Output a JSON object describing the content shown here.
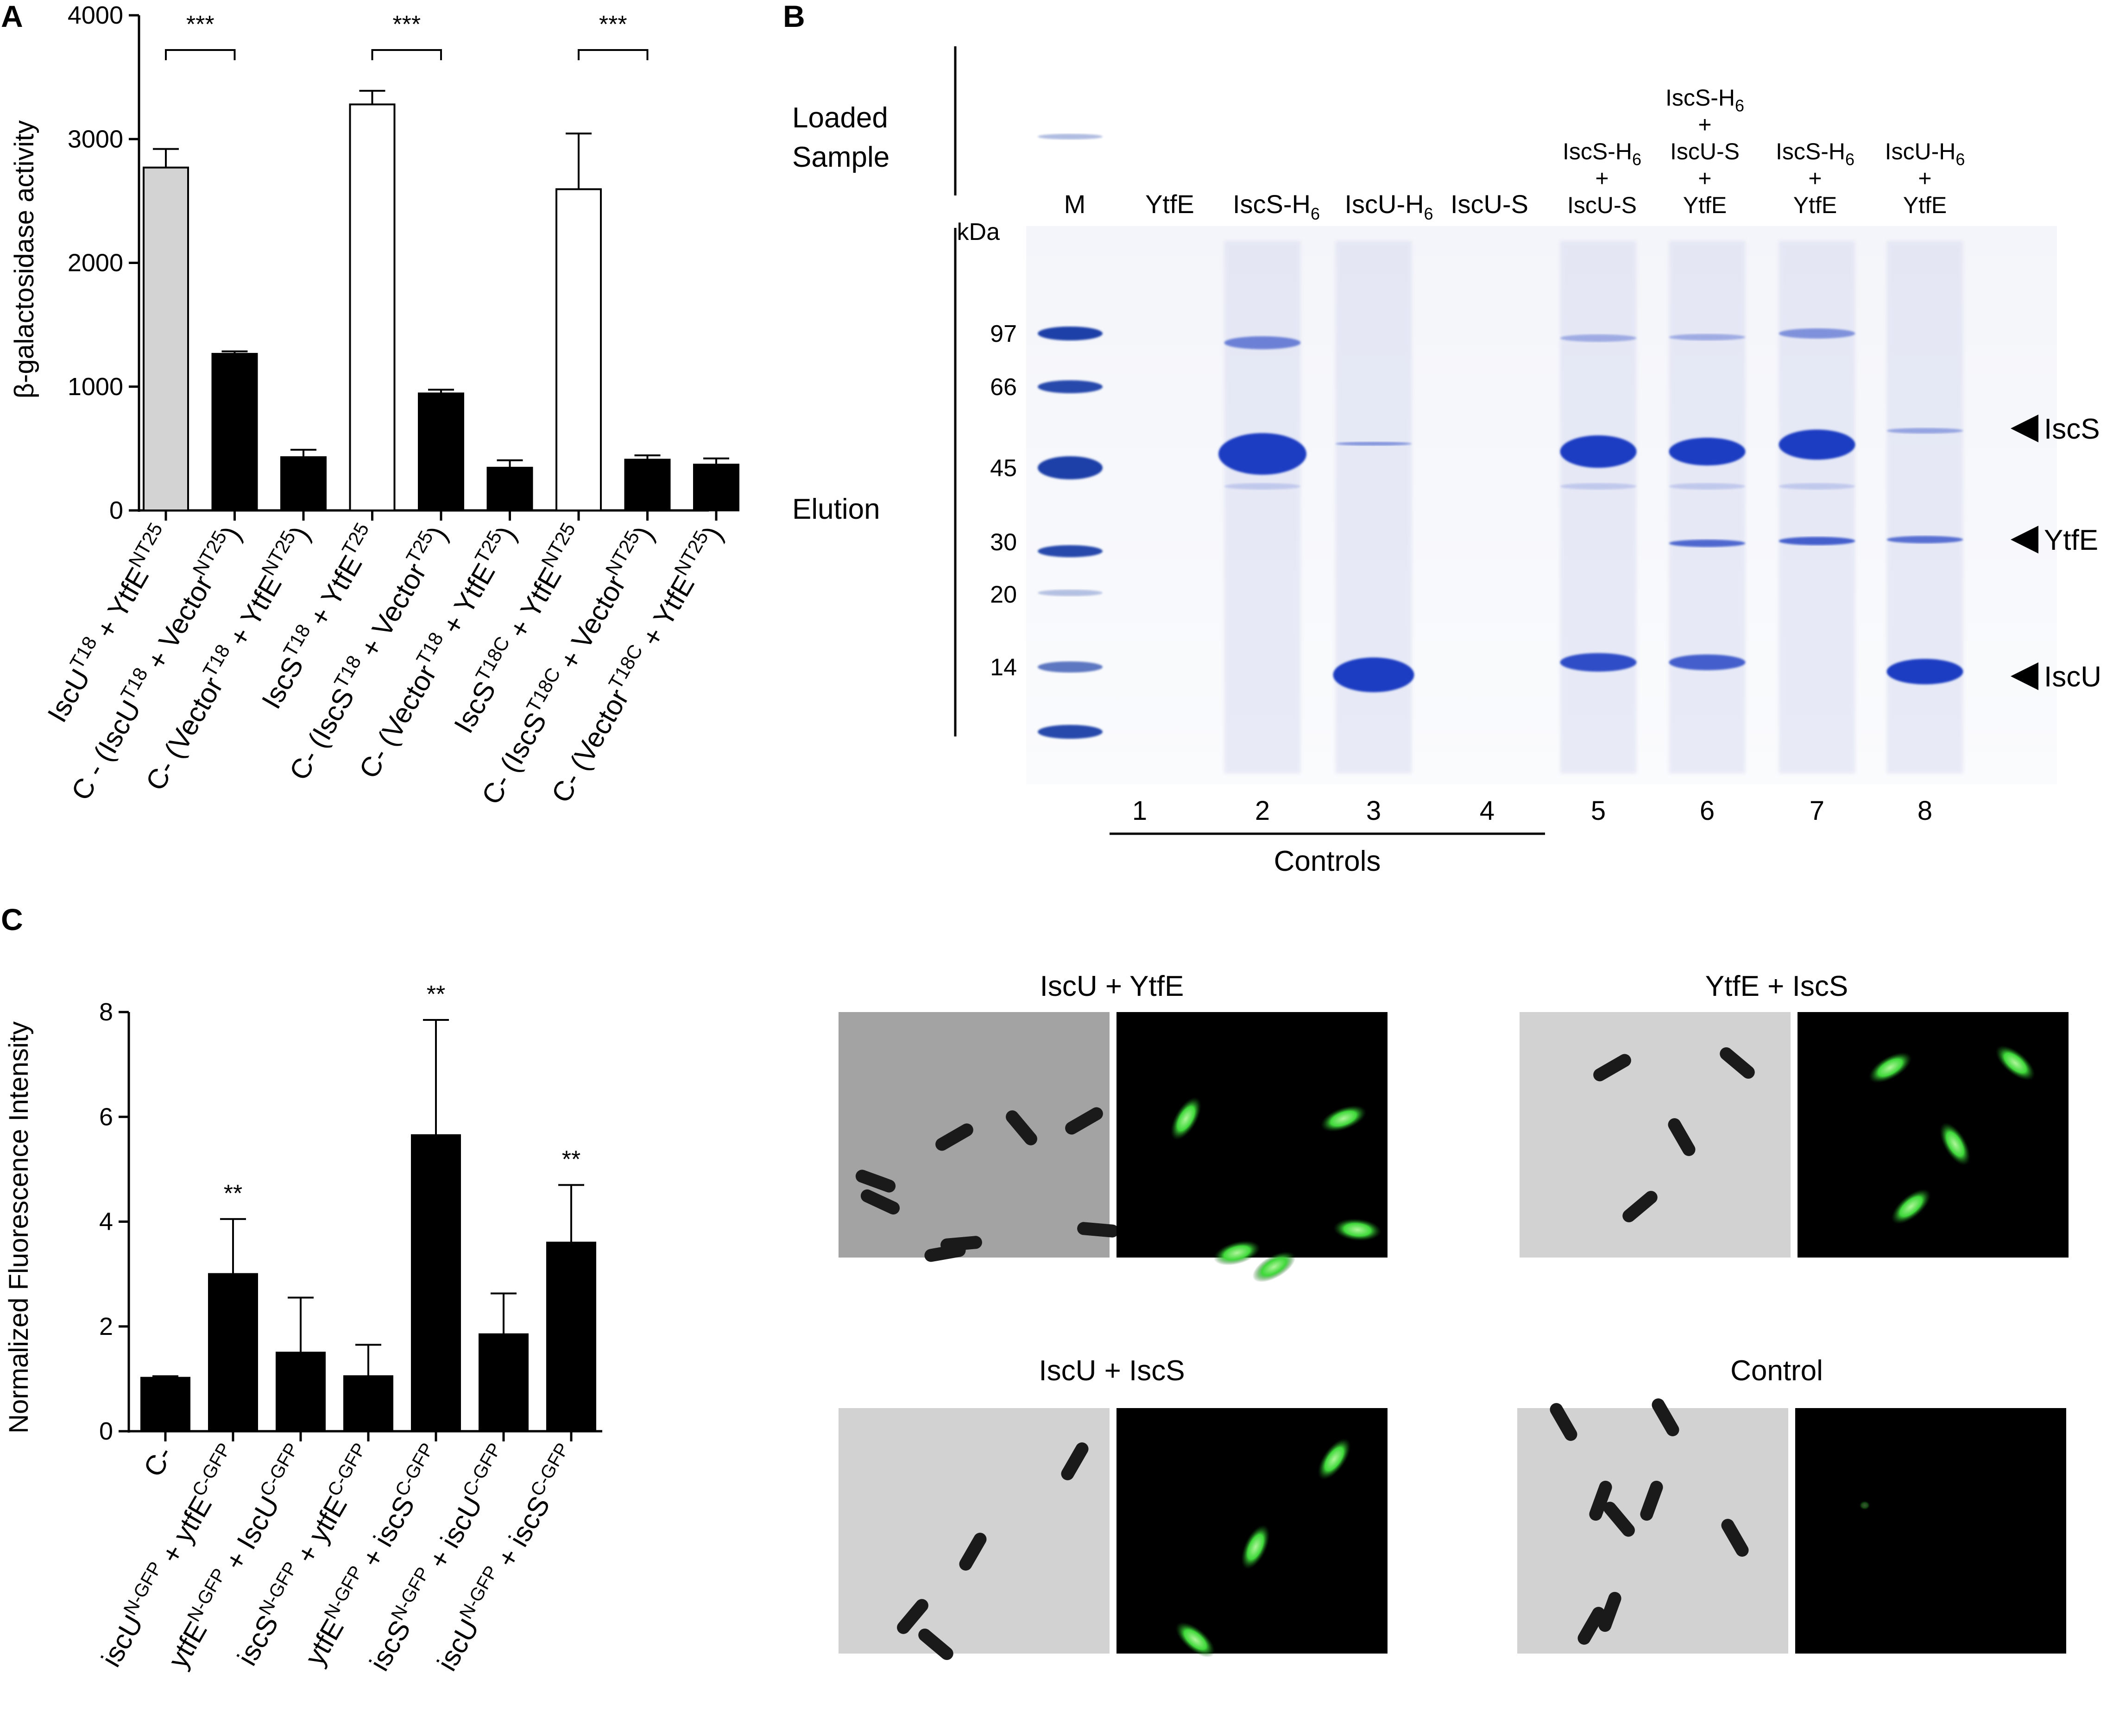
{
  "panels": {
    "A": {
      "letter": "A",
      "chart_data": {
        "type": "bar",
        "ylabel": "β-galactosidase activity",
        "ylim": [
          0,
          4000
        ],
        "yticks": [
          0,
          1000,
          2000,
          3000,
          4000
        ],
        "categories": [
          "IscU^T18 + YtfE^NT25",
          "C - (IscU^T18 + Vector^NT25)",
          "C- (Vector^T18 + YtfE^NT25)",
          "IscS^T18 + YtfE^T25",
          "C- (IscS^T18 + Vector^T25)",
          "C- (Vector^T18 + YtfE^T25)",
          "IscS^T18C + YtfE^NT25",
          "C- (IscS^T18C + Vector^NT25)",
          "C- (Vector^T18C + YtfE^NT25)"
        ],
        "values": [
          2770,
          1265,
          430,
          3280,
          945,
          345,
          2595,
          410,
          370
        ],
        "errors": [
          150,
          20,
          60,
          110,
          30,
          60,
          450,
          35,
          50
        ],
        "fill": [
          "#d3d3d3",
          "#000000",
          "#000000",
          "#ffffff",
          "#000000",
          "#000000",
          "#ffffff",
          "#000000",
          "#000000"
        ],
        "significance": [
          {
            "from": 0,
            "to": 1,
            "label": "***"
          },
          {
            "from": 3,
            "to": 4,
            "label": "***"
          },
          {
            "from": 6,
            "to": 7,
            "label": "***"
          }
        ]
      },
      "x_labels": [
        {
          "parts": [
            [
              "IscU",
              ""
            ],
            [
              "T18",
              "sup"
            ],
            [
              " + YtfE",
              ""
            ],
            [
              "NT25",
              "sup"
            ]
          ]
        },
        {
          "parts": [
            [
              "C - (IscU",
              ""
            ],
            [
              "T18",
              "sup"
            ],
            [
              " + Vector",
              ""
            ],
            [
              "NT25",
              "sup"
            ],
            [
              ")",
              ""
            ]
          ]
        },
        {
          "parts": [
            [
              "C- (Vector",
              ""
            ],
            [
              "T18",
              "sup"
            ],
            [
              " + YtfE",
              ""
            ],
            [
              "NT25",
              "sup"
            ],
            [
              ")",
              ""
            ]
          ]
        },
        {
          "parts": [
            [
              "IscS",
              ""
            ],
            [
              "T18",
              "sup"
            ],
            [
              " + YtfE",
              ""
            ],
            [
              "T25",
              "sup"
            ]
          ]
        },
        {
          "parts": [
            [
              "C- (IscS",
              ""
            ],
            [
              "T18",
              "sup"
            ],
            [
              " + Vector",
              ""
            ],
            [
              "T25",
              "sup"
            ],
            [
              ")",
              ""
            ]
          ]
        },
        {
          "parts": [
            [
              "C- (Vector",
              ""
            ],
            [
              "T18",
              "sup"
            ],
            [
              " + YtfE",
              ""
            ],
            [
              "T25",
              "sup"
            ],
            [
              ")",
              ""
            ]
          ]
        },
        {
          "parts": [
            [
              "IscS",
              ""
            ],
            [
              "T18C",
              "sup"
            ],
            [
              " + YtfE",
              ""
            ],
            [
              "NT25",
              "sup"
            ]
          ]
        },
        {
          "parts": [
            [
              "C- (IscS",
              ""
            ],
            [
              "T18C",
              "sup"
            ],
            [
              " + Vector",
              ""
            ],
            [
              "NT25",
              "sup"
            ],
            [
              ")",
              ""
            ]
          ]
        },
        {
          "parts": [
            [
              "C- (Vector",
              ""
            ],
            [
              "T18C",
              "sup"
            ],
            [
              " + YtfE",
              ""
            ],
            [
              "NT25",
              "sup"
            ],
            [
              ")",
              ""
            ]
          ]
        }
      ]
    },
    "B": {
      "letter": "B",
      "loaded_sample_label": [
        "Loaded",
        "Sample"
      ],
      "elution_label": "Elution",
      "kda_label": "kDa",
      "marker_kda": [
        "97",
        "66",
        "45",
        "30",
        "20",
        "14"
      ],
      "lane_headers": [
        {
          "lines": [
            [
              [
                "M",
                ""
              ]
            ]
          ]
        },
        {
          "lines": [
            [
              [
                "YtfE",
                ""
              ]
            ]
          ]
        },
        {
          "lines": [
            [
              [
                "IscS-H",
                ""
              ],
              [
                "6",
                "sub"
              ]
            ]
          ]
        },
        {
          "lines": [
            [
              [
                "IscU-H",
                ""
              ],
              [
                "6",
                "sub"
              ]
            ]
          ]
        },
        {
          "lines": [
            [
              [
                "IscU-S",
                ""
              ]
            ]
          ]
        },
        {
          "lines": [
            [
              [
                "IscS-H",
                ""
              ],
              [
                "6",
                "sub"
              ]
            ],
            [
              [
                "+",
                ""
              ]
            ],
            [
              [
                "IscU-S",
                ""
              ]
            ]
          ]
        },
        {
          "lines": [
            [
              [
                "IscS-H",
                ""
              ],
              [
                "6",
                "sub"
              ]
            ],
            [
              [
                "+",
                ""
              ]
            ],
            [
              [
                "IscU-S",
                ""
              ]
            ],
            [
              [
                "+",
                ""
              ]
            ],
            [
              [
                "YtfE",
                ""
              ]
            ]
          ]
        },
        {
          "lines": [
            [
              [
                "IscS-H",
                ""
              ],
              [
                "6",
                "sub"
              ]
            ],
            [
              [
                "+",
                ""
              ]
            ],
            [
              [
                "YtfE",
                ""
              ]
            ]
          ]
        },
        {
          "lines": [
            [
              [
                "IscU-H",
                ""
              ],
              [
                "6",
                "sub"
              ]
            ],
            [
              [
                "+",
                ""
              ]
            ],
            [
              [
                "YtfE",
                ""
              ]
            ]
          ]
        }
      ],
      "lane_numbers": [
        "1",
        "2",
        "3",
        "4",
        "5",
        "6",
        "7",
        "8"
      ],
      "controls_label": "Controls",
      "band_labels": [
        "IscS",
        "YtfE",
        "IscU"
      ]
    },
    "C": {
      "letter": "C",
      "chart_data": {
        "type": "bar",
        "ylabel": "Normalized Fluorescence Intensity",
        "ylim": [
          0,
          8
        ],
        "yticks": [
          0,
          2,
          4,
          6,
          8
        ],
        "categories": [
          "C-",
          "iscU^N-GFP + ytfE^C-GFP",
          "ytfE^N-GFP + iscU^C-GFP",
          "iscS^N-GFP + ytfE^C-GFP",
          "ytfE^N-GFP + iscS^C-GFP",
          "iscS^N-GFP + iscU^C-GFP",
          "iscU^N-GFP + iscS^C-GFP"
        ],
        "values": [
          1.02,
          3.0,
          1.5,
          1.05,
          5.65,
          1.85,
          3.6
        ],
        "errors": [
          0.03,
          1.05,
          1.05,
          0.6,
          2.2,
          0.78,
          1.1
        ],
        "significance": [
          "",
          "**",
          "",
          "",
          "**",
          "",
          "**"
        ]
      },
      "x_labels": [
        {
          "parts": [
            [
              "C-",
              ""
            ]
          ]
        },
        {
          "parts": [
            [
              "iscU",
              ""
            ],
            [
              "N-GFP",
              "sup"
            ],
            [
              " + ytfE",
              ""
            ],
            [
              "C-GFP",
              "sup"
            ]
          ]
        },
        {
          "parts": [
            [
              "ytfE",
              ""
            ],
            [
              "N-GFP",
              "sup"
            ],
            [
              " + IscU",
              ""
            ],
            [
              "C-GFP",
              "sup"
            ]
          ]
        },
        {
          "parts": [
            [
              "iscS",
              ""
            ],
            [
              "N-GFP",
              "sup"
            ],
            [
              " + ytfE",
              ""
            ],
            [
              "C-GFP",
              "sup"
            ]
          ]
        },
        {
          "parts": [
            [
              "ytfE",
              ""
            ],
            [
              "N-GFP",
              "sup"
            ],
            [
              " + iscS",
              ""
            ],
            [
              "C-GFP",
              "sup"
            ]
          ]
        },
        {
          "parts": [
            [
              "iscS",
              ""
            ],
            [
              "N-GFP",
              "sup"
            ],
            [
              " + iscU",
              ""
            ],
            [
              "C-GFP",
              "sup"
            ]
          ]
        },
        {
          "parts": [
            [
              "iscU",
              ""
            ],
            [
              "N-GFP",
              "sup"
            ],
            [
              " + iscS",
              ""
            ],
            [
              "C-GFP",
              "sup"
            ]
          ]
        }
      ],
      "micrograph_titles": [
        "IscU + YtfE",
        "YtfE + IscS",
        "IscU + IscS",
        "Control"
      ]
    }
  }
}
